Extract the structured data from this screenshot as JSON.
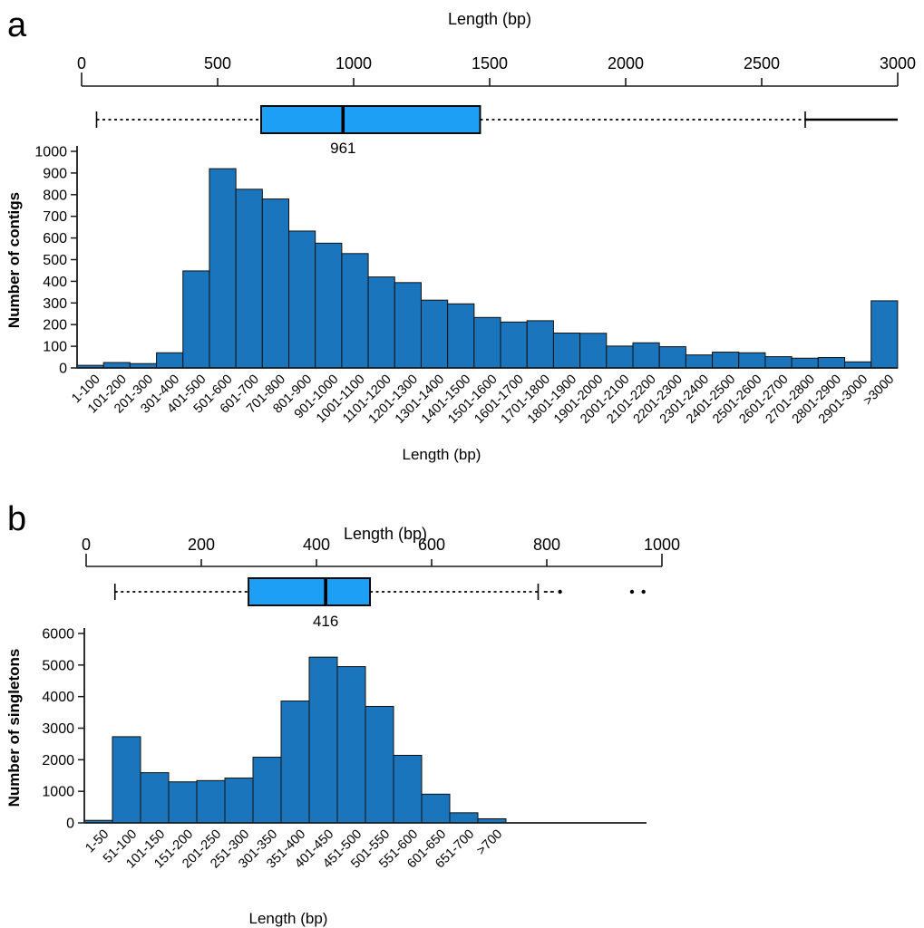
{
  "figure": {
    "background": "#ffffff",
    "colors": {
      "bar_fill": "#1b75bc",
      "bar_stroke": "#111111",
      "box_fill": "#1c9ff5",
      "box_stroke": "#000000",
      "axis": "#1a1a1a",
      "text": "#000000"
    }
  },
  "chart_data": [
    {
      "panel_label": "a",
      "type": "histogram+boxplot",
      "title": "Length (bp)",
      "xlabel": "Length (bp)",
      "ylabel": "Number of contigs",
      "top_axis": {
        "min": 0,
        "max": 3000,
        "ticks": [
          0,
          500,
          1000,
          1500,
          2000,
          2500,
          3000
        ]
      },
      "boxplot": {
        "whisker_low": 55,
        "q1": 660,
        "median": 961,
        "median_label": "961",
        "q3": 1465,
        "whisker_high": 2660,
        "outlier_segment": [
          2660,
          3000
        ],
        "outlier_segment_style": "solid",
        "outlier_points": []
      },
      "categories": [
        "1-100",
        "101-200",
        "201-300",
        "301-400",
        "401-500",
        "501-600",
        "601-700",
        "701-800",
        "801-900",
        "901-1000",
        "1001-1100",
        "1101-1200",
        "1201-1300",
        "1301-1400",
        "1401-1500",
        "1501-1600",
        "1601-1700",
        "1701-1800",
        "1801-1900",
        "1901-2000",
        "2001-2100",
        "2101-2200",
        "2201-2300",
        "2301-2400",
        "2401-2500",
        "2501-2600",
        "2601-2700",
        "2701-2800",
        "2801-2900",
        "2901-3000",
        ">3000"
      ],
      "values": [
        12,
        25,
        20,
        70,
        448,
        920,
        825,
        780,
        632,
        576,
        528,
        420,
        394,
        313,
        296,
        233,
        212,
        218,
        161,
        160,
        101,
        116,
        98,
        60,
        73,
        70,
        52,
        45,
        48,
        28,
        310
      ],
      "ylim": [
        0,
        1000
      ],
      "ytick_interval": 100,
      "grid": false,
      "legend": "none"
    },
    {
      "panel_label": "b",
      "type": "histogram+boxplot",
      "title": "Length (bp)",
      "xlabel": "Length (bp)",
      "ylabel": "Number of singletons",
      "top_axis": {
        "min": 0,
        "max": 1000,
        "ticks": [
          0,
          200,
          400,
          600,
          800,
          1000
        ]
      },
      "boxplot": {
        "whisker_low": 50,
        "q1": 282,
        "median": 416,
        "median_label": "416",
        "q3": 493,
        "whisker_high": 785,
        "outlier_segment": [
          795,
          815
        ],
        "outlier_segment_style": "dashed",
        "outlier_points": [
          823,
          948,
          968
        ]
      },
      "categories": [
        "1-50",
        "51-100",
        "101-150",
        "151-200",
        "201-250",
        "251-300",
        "301-350",
        "351-400",
        "401-450",
        "451-500",
        "501-550",
        "551-600",
        "601-650",
        "651-700",
        ">700"
      ],
      "values": [
        80,
        2730,
        1590,
        1300,
        1340,
        1420,
        2080,
        3860,
        5250,
        4950,
        3690,
        2140,
        910,
        320,
        130
      ],
      "ylim": [
        0,
        6000
      ],
      "ytick_interval": 1000,
      "grid": false,
      "legend": "none"
    }
  ]
}
